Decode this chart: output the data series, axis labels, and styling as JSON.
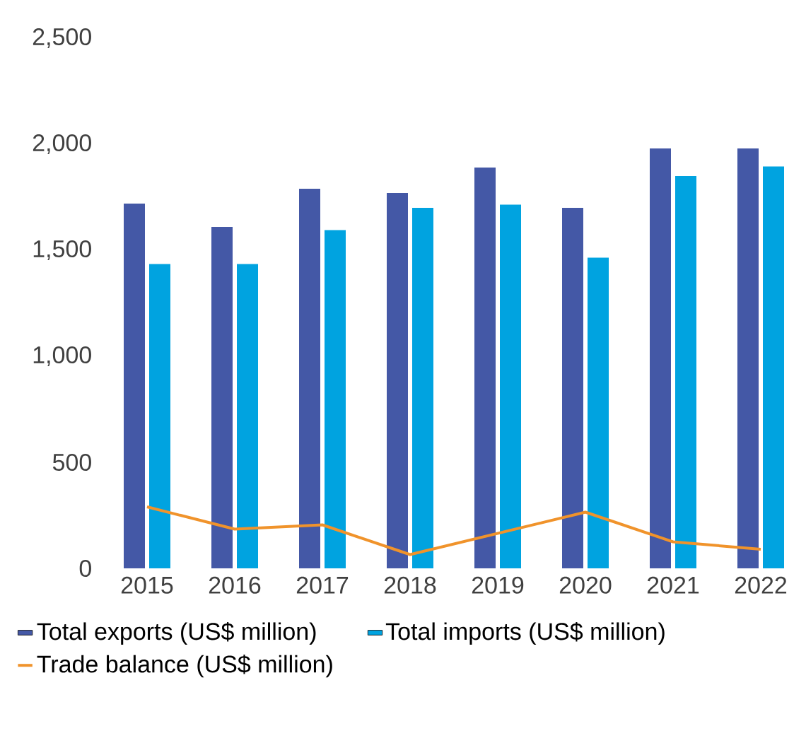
{
  "chart_data": {
    "type": "bar",
    "categories": [
      "2015",
      "2016",
      "2017",
      "2018",
      "2019",
      "2020",
      "2021",
      "2022"
    ],
    "series": [
      {
        "name": "Total exports (US$ million)",
        "color": "#4458a6",
        "values": [
          1720,
          1610,
          1790,
          1770,
          1890,
          1700,
          1980,
          1980
        ]
      },
      {
        "name": "Total imports (US$ million)",
        "color": "#00a3e0",
        "values": [
          1435,
          1435,
          1595,
          1700,
          1715,
          1465,
          1850,
          1895
        ]
      },
      {
        "name": "Trade balance (US$ million)",
        "color": "#f0932b",
        "type": "line",
        "values": [
          290,
          185,
          205,
          65,
          165,
          265,
          125,
          90
        ]
      }
    ],
    "ylim": [
      0,
      2500
    ],
    "yticks": [
      0,
      500,
      {
        "value": 1000,
        "label": "1,000"
      },
      {
        "value": 1500,
        "label": "1,500"
      },
      {
        "value": 2000,
        "label": "2,000"
      },
      {
        "value": 2500,
        "label": "2,500"
      }
    ],
    "legend": "bottom"
  }
}
